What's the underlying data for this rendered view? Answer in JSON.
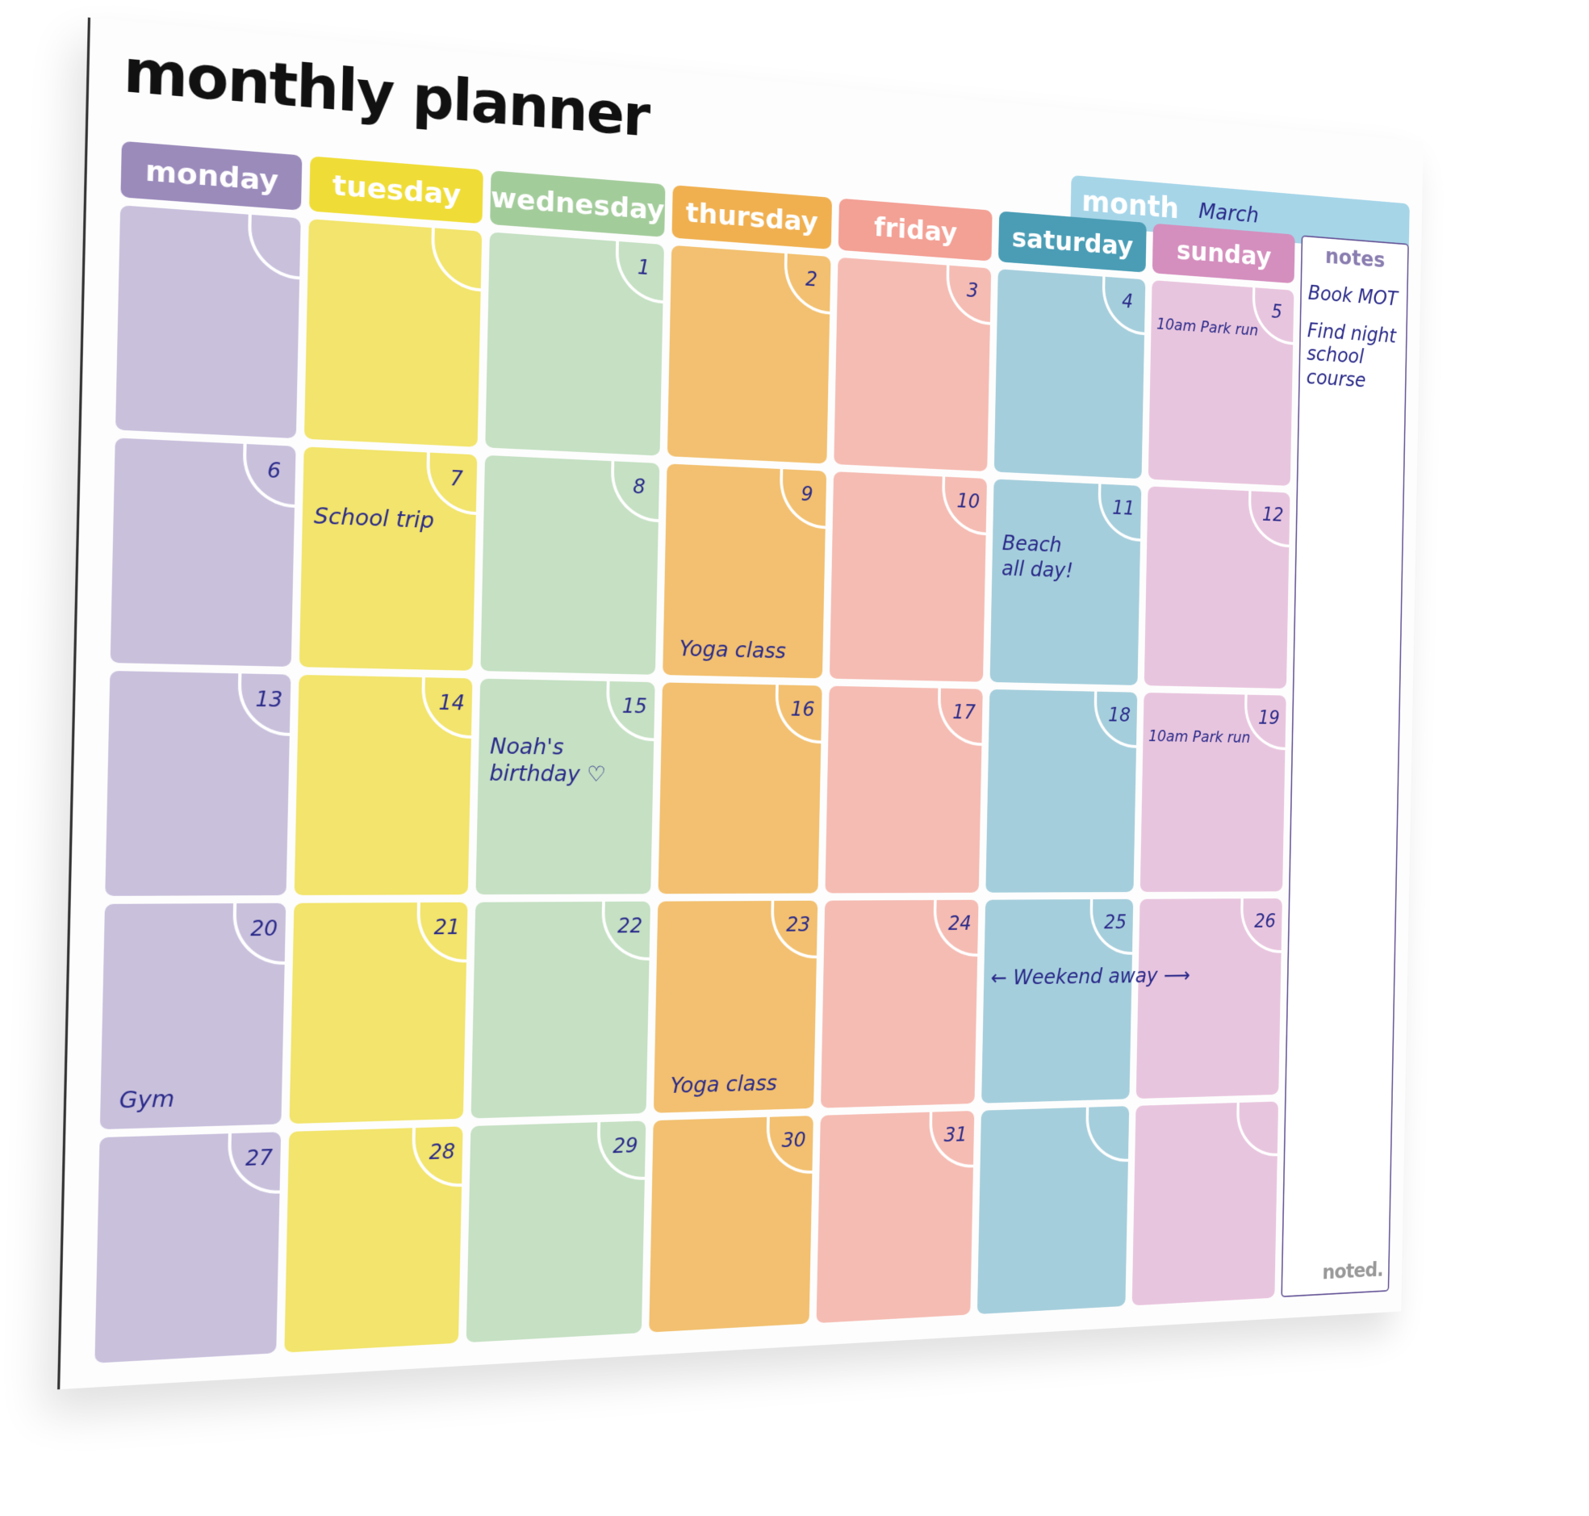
{
  "title": "monthly planner",
  "month": {
    "label": "month",
    "value": "March"
  },
  "days": [
    {
      "name": "monday",
      "header_color": "#9b8bbb",
      "cell_color": "#c9c0dc"
    },
    {
      "name": "tuesday",
      "header_color": "#efdc36",
      "cell_color": "#f2e46c"
    },
    {
      "name": "wednesday",
      "header_color": "#a3cc9b",
      "cell_color": "#c5e0c3"
    },
    {
      "name": "thursday",
      "header_color": "#f0b050",
      "cell_color": "#f2c070"
    },
    {
      "name": "friday",
      "header_color": "#f3a095",
      "cell_color": "#f5bcb3"
    },
    {
      "name": "saturday",
      "header_color": "#4a9db5",
      "cell_color": "#a5cedc"
    },
    {
      "name": "sunday",
      "header_color": "#d48fbe",
      "cell_color": "#e8c5de"
    }
  ],
  "weeks": [
    [
      "",
      "",
      "1",
      "2",
      "3",
      "4",
      "5"
    ],
    [
      "6",
      "7",
      "8",
      "9",
      "10",
      "11",
      "12"
    ],
    [
      "13",
      "14",
      "15",
      "16",
      "17",
      "18",
      "19"
    ],
    [
      "20",
      "21",
      "22",
      "23",
      "24",
      "25",
      "26"
    ],
    [
      "27",
      "28",
      "29",
      "30",
      "31",
      "",
      ""
    ]
  ],
  "entries": [
    {
      "week": 0,
      "day": 6,
      "text": "10am  Park run",
      "pos": "topsmall"
    },
    {
      "week": 1,
      "day": 1,
      "text": "School trip",
      "pos": "top"
    },
    {
      "week": 1,
      "day": 3,
      "text": "Yoga class",
      "pos": "bottom"
    },
    {
      "week": 1,
      "day": 5,
      "text": "Beach\n  all day!",
      "pos": "top"
    },
    {
      "week": 2,
      "day": 2,
      "text": "Noah's\n birthday ♡",
      "pos": "top"
    },
    {
      "week": 2,
      "day": 6,
      "text": "10am Park run",
      "pos": "topsmall"
    },
    {
      "week": 3,
      "day": 0,
      "text": "Gym",
      "pos": "bottom"
    },
    {
      "week": 3,
      "day": 3,
      "text": "Yoga  class",
      "pos": "bottom"
    },
    {
      "week": 3,
      "day": 5,
      "text": "← Weekend away ⟶",
      "pos": "span"
    }
  ],
  "notes": {
    "title": "notes",
    "items": [
      "Book  MOT",
      "Find night\n school course"
    ]
  },
  "brand": "noted."
}
